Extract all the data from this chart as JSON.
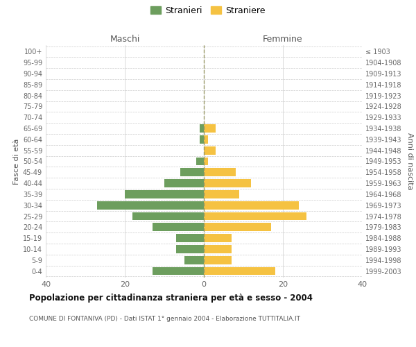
{
  "age_groups": [
    "0-4",
    "5-9",
    "10-14",
    "15-19",
    "20-24",
    "25-29",
    "30-34",
    "35-39",
    "40-44",
    "45-49",
    "50-54",
    "55-59",
    "60-64",
    "65-69",
    "70-74",
    "75-79",
    "80-84",
    "85-89",
    "90-94",
    "95-99",
    "100+"
  ],
  "birth_years": [
    "1999-2003",
    "1994-1998",
    "1989-1993",
    "1984-1988",
    "1979-1983",
    "1974-1978",
    "1969-1973",
    "1964-1968",
    "1959-1963",
    "1954-1958",
    "1949-1953",
    "1944-1948",
    "1939-1943",
    "1934-1938",
    "1929-1933",
    "1924-1928",
    "1919-1923",
    "1914-1918",
    "1909-1913",
    "1904-1908",
    "≤ 1903"
  ],
  "maschi": [
    13,
    5,
    7,
    7,
    13,
    18,
    27,
    20,
    10,
    6,
    2,
    0,
    1,
    1,
    0,
    0,
    0,
    0,
    0,
    0,
    0
  ],
  "femmine": [
    18,
    7,
    7,
    7,
    17,
    26,
    24,
    9,
    12,
    8,
    1,
    3,
    1,
    3,
    0,
    0,
    0,
    0,
    0,
    0,
    0
  ],
  "maschi_color": "#6d9e5e",
  "femmine_color": "#f5c242",
  "title": "Popolazione per cittadinanza straniera per età e sesso - 2004",
  "subtitle": "COMUNE DI FONTANIVA (PD) - Dati ISTAT 1° gennaio 2004 - Elaborazione TUTTITALIA.IT",
  "legend_maschi": "Stranieri",
  "legend_femmine": "Straniere",
  "label_left": "Maschi",
  "label_right": "Femmine",
  "ylabel_left": "Fasce di età",
  "ylabel_right": "Anni di nascita",
  "xlim": 40,
  "background_color": "#ffffff",
  "grid_color": "#cccccc",
  "dashed_line_color": "#999966"
}
